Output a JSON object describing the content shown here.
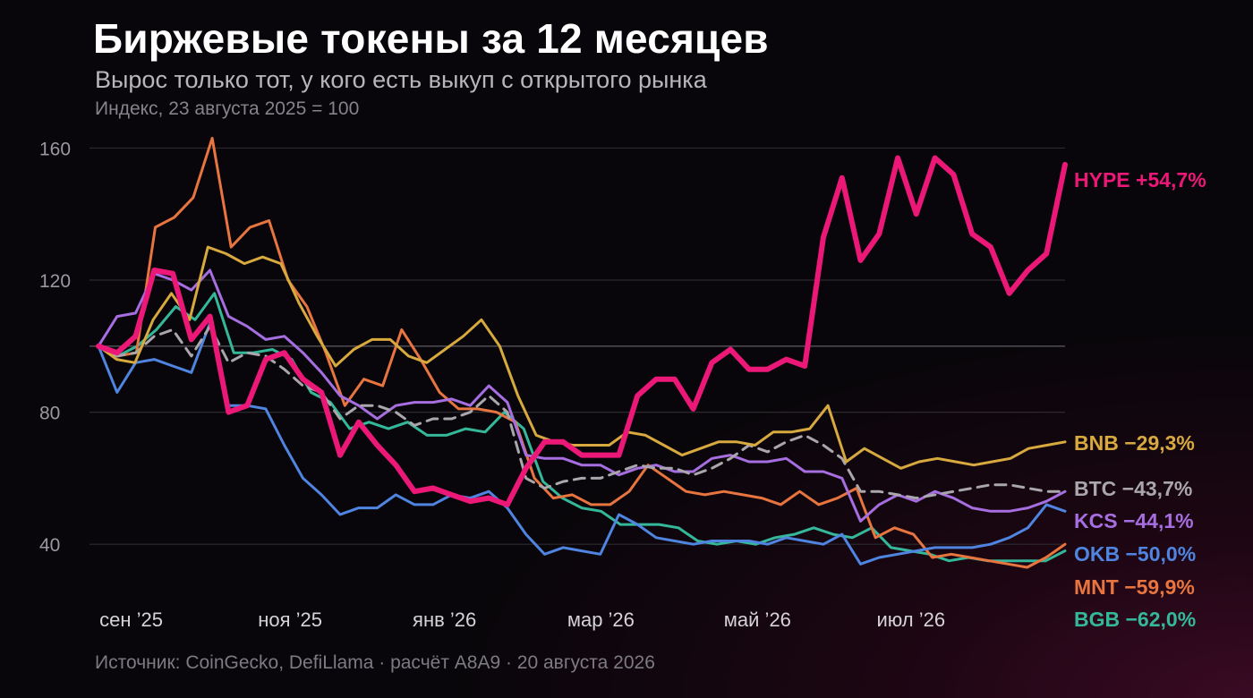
{
  "header": {
    "title": "Биржевые токены за 12 месяцев",
    "subtitle": "Вырос только тот, у кого есть выкуп с открытого рынка",
    "note": "Индекс, 23 августа 2025 = 100"
  },
  "footer": {
    "source": "Источник: CoinGecko, DefiLlama · расчёт A8A9 · 20 августа 2026"
  },
  "chart_data": {
    "type": "line",
    "ylim": [
      20,
      165
    ],
    "xlim": [
      0,
      50
    ],
    "yticks": [
      {
        "value": 40,
        "label": "40"
      },
      {
        "value": 80,
        "label": "80"
      },
      {
        "value": 120,
        "label": "120"
      },
      {
        "value": 160,
        "label": "160"
      }
    ],
    "baseline": 100,
    "xticks": [
      {
        "pos": 0.7,
        "label": "сен ’25"
      },
      {
        "pos": 8.9,
        "label": "ноя ’25"
      },
      {
        "pos": 16.9,
        "label": "янв ’26"
      },
      {
        "pos": 24.9,
        "label": "мар ’26"
      },
      {
        "pos": 33.0,
        "label": "май ’26"
      },
      {
        "pos": 40.9,
        "label": "июл ’26"
      }
    ],
    "series": [
      {
        "name": "BGB",
        "label": "BGB −62,0%",
        "color": "#35b89a",
        "width": 3,
        "dash": false,
        "values": [
          100,
          97,
          100,
          105,
          112,
          108,
          116,
          98,
          98,
          99,
          96,
          86,
          83,
          75,
          77,
          75,
          77,
          73,
          73,
          75,
          74,
          80,
          75,
          59,
          54,
          51,
          50,
          46,
          46,
          46,
          45,
          41,
          40,
          41,
          40,
          42,
          43,
          45,
          43,
          42,
          45,
          39,
          38,
          37,
          35,
          36,
          35,
          35,
          35,
          35,
          38
        ]
      },
      {
        "name": "MNT",
        "label": "MNT −59,9%",
        "color": "#e8753f",
        "width": 3,
        "dash": false,
        "values": [
          100,
          97,
          98,
          136,
          139,
          145,
          163,
          130,
          136,
          138,
          120,
          112,
          98,
          82,
          90,
          88,
          105,
          96,
          86,
          81,
          81,
          80,
          77,
          60,
          54,
          55,
          52,
          52,
          56,
          64,
          60,
          56,
          55,
          56,
          55,
          54,
          52,
          56,
          52,
          54,
          57,
          42,
          45,
          43,
          36,
          37,
          36,
          35,
          34,
          33,
          36,
          40
        ]
      },
      {
        "name": "OKB",
        "label": "OKB −50,0%",
        "color": "#4f84e0",
        "width": 3,
        "dash": false,
        "values": [
          100,
          86,
          95,
          96,
          94,
          92,
          107,
          82,
          82,
          81,
          70,
          60,
          55,
          49,
          51,
          51,
          55,
          52,
          52,
          55,
          54,
          56,
          51,
          43,
          37,
          39,
          38,
          37,
          49,
          46,
          42,
          41,
          40,
          41,
          41,
          41,
          40,
          42,
          41,
          40,
          43,
          34,
          36,
          37,
          38,
          39,
          39,
          39,
          40,
          42,
          45,
          52,
          50
        ]
      },
      {
        "name": "KCS",
        "label": "KCS −44,1%",
        "color": "#a66ee0",
        "width": 3,
        "dash": false,
        "values": [
          100,
          109,
          110,
          122,
          120,
          117,
          123,
          109,
          106,
          102,
          103,
          98,
          92,
          85,
          82,
          78,
          82,
          83,
          83,
          84,
          82,
          88,
          83,
          67,
          66,
          66,
          64,
          64,
          61,
          63,
          64,
          62,
          62,
          66,
          67,
          65,
          65,
          66,
          62,
          62,
          60,
          47,
          52,
          55,
          53,
          56,
          54,
          51,
          50,
          50,
          51,
          53,
          56
        ]
      },
      {
        "name": "BTC",
        "label": "BTC −43,7%",
        "color": "#a9a6ac",
        "width": 3,
        "dash": true,
        "values": [
          100,
          97,
          98,
          103,
          105,
          97,
          106,
          95,
          98,
          97,
          93,
          88,
          86,
          78,
          82,
          82,
          80,
          76,
          78,
          78,
          80,
          85,
          80,
          60,
          57,
          59,
          60,
          60,
          62,
          64,
          63,
          63,
          61,
          63,
          66,
          70,
          68,
          71,
          73,
          70,
          66,
          56,
          56,
          55,
          54,
          55,
          56,
          57,
          58,
          58,
          57,
          56,
          56
        ]
      },
      {
        "name": "BNB",
        "label": "BNB −29,3%",
        "color": "#d8a93e",
        "width": 3,
        "dash": false,
        "values": [
          100,
          96,
          95,
          108,
          116,
          108,
          130,
          128,
          125,
          127,
          125,
          113,
          103,
          94,
          99,
          102,
          102,
          97,
          95,
          99,
          103,
          108,
          100,
          85,
          73,
          71,
          70,
          70,
          70,
          74,
          73,
          70,
          67,
          69,
          71,
          71,
          70,
          74,
          74,
          75,
          82,
          65,
          69,
          66,
          63,
          65,
          66,
          65,
          64,
          65,
          66,
          69,
          70,
          71
        ]
      },
      {
        "name": "HYPE",
        "label": "HYPE +54,7%",
        "color": "#ec1878",
        "width": 6,
        "dash": false,
        "values": [
          100,
          98,
          103,
          123,
          122,
          102,
          109,
          80,
          82,
          96,
          98,
          90,
          86,
          67,
          77,
          70,
          64,
          56,
          57,
          55,
          53,
          54,
          52,
          63,
          71,
          71,
          67,
          67,
          67,
          85,
          90,
          90,
          81,
          95,
          99,
          93,
          93,
          96,
          94,
          133,
          151,
          126,
          134,
          157,
          140,
          157,
          152,
          134,
          130,
          116,
          123,
          128,
          155
        ]
      }
    ]
  }
}
